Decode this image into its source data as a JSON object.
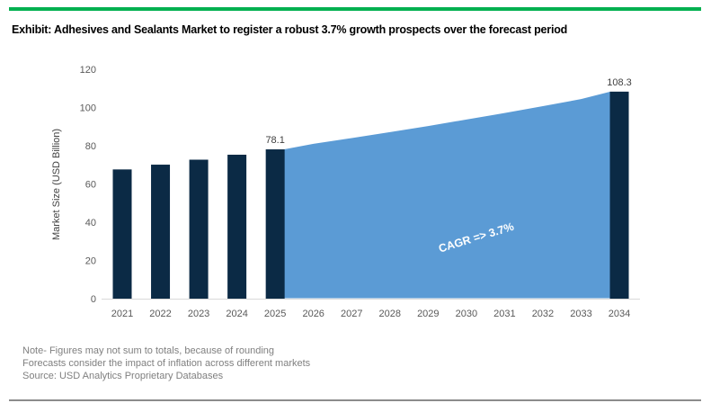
{
  "header": {
    "title": "Exhibit: Adhesives and Sealants Market to register a robust 3.7% growth prospects over the forecast period"
  },
  "chart_data": {
    "type": "bar",
    "subtype": "historic bars with forecast area",
    "title": "Exhibit: Adhesives and Sealants Market to register a robust 3.7% growth prospects over the forecast period",
    "xlabel": "",
    "ylabel": "Market Size (USD Billion)",
    "ylim": [
      0,
      120
    ],
    "yticks": [
      "0",
      "20",
      "40",
      "60",
      "80",
      "100",
      "120"
    ],
    "grid": false,
    "legend_position": "none",
    "categories": [
      "2021",
      "2022",
      "2023",
      "2024",
      "2025",
      "2026",
      "2027",
      "2028",
      "2029",
      "2030",
      "2031",
      "2032",
      "2033",
      "2034"
    ],
    "series": [
      {
        "name": "market-size-bars",
        "type": "bar",
        "color": "#0B2A45",
        "points": [
          {
            "category": "2021",
            "value": 67.6
          },
          {
            "category": "2022",
            "value": 70.1
          },
          {
            "category": "2023",
            "value": 72.7
          },
          {
            "category": "2024",
            "value": 75.3
          },
          {
            "category": "2025",
            "value": 78.1,
            "data_label": "78.1"
          },
          {
            "category": "2034",
            "value": 108.3,
            "data_label": "108.3"
          }
        ]
      },
      {
        "name": "forecast-area",
        "type": "area",
        "color": "#5B9BD5",
        "from_category": "2025",
        "to_category": "2034",
        "values": [
          78.1,
          81.0,
          84.0,
          87.1,
          90.3,
          93.7,
          97.1,
          100.7,
          104.4,
          108.3
        ],
        "annotation": {
          "text": "CAGR => 3.7%",
          "color": "#FFFFFF",
          "rotation_deg": -17
        }
      }
    ]
  },
  "notes": [
    "Note- Figures may not sum to totals, because of rounding",
    "Forecasts consider the impact of inflation across different markets",
    "Source: USD Analytics Proprietary Databases"
  ],
  "style": {
    "accent_green": "#00B050",
    "bottom_rule_gray": "#8C8C8C",
    "axis_line_color": "#D9D9D9",
    "tick_text_color": "#595959",
    "axis_title_color": "#404040",
    "data_label_color": "#404040",
    "notes_color": "#7F7F7F",
    "title_color": "#000000"
  }
}
